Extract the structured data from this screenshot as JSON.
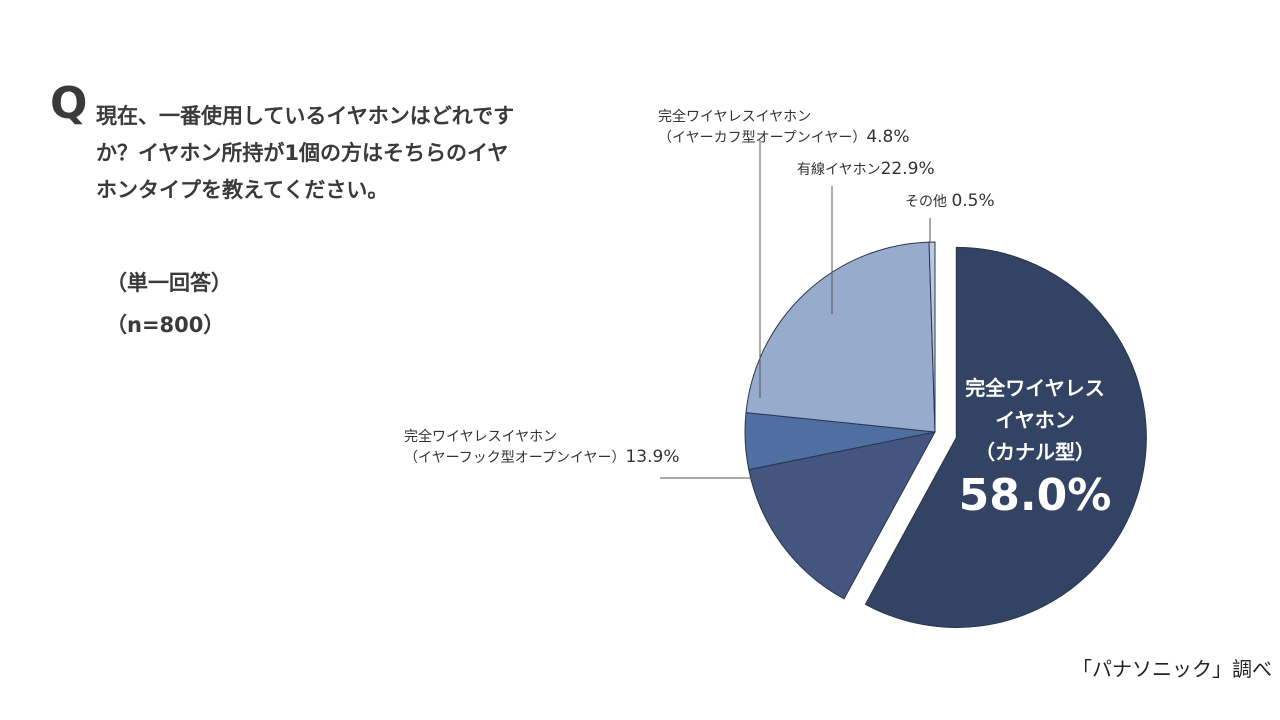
{
  "question": {
    "mark": "Q",
    "text": "現在、一番使用しているイヤホンはどれですか？イヤホン所持が1個の方はそちらのイヤホンタイプを教えてください。",
    "answer_type": "（単一回答）",
    "sample_size": "（n=800）"
  },
  "chart_data": {
    "type": "pie",
    "slices": [
      {
        "label": "完全ワイヤレスイヤホン（カナル型）",
        "value": 58.0,
        "display": "58.0%",
        "color": "#324363",
        "exploded": true
      },
      {
        "label": "完全ワイヤレスイヤホン（イヤーフック型オープンイヤー）",
        "value": 13.9,
        "display": "13.9%",
        "color": "#44567f"
      },
      {
        "label": "完全ワイヤレスイヤホン（イヤーカフ型オープンイヤー）",
        "value": 4.8,
        "display": "4.8%",
        "color": "#4f6fa3"
      },
      {
        "label": "有線イヤホン",
        "value": 22.9,
        "display": "22.9%",
        "color": "#97abcc"
      },
      {
        "label": "その他",
        "value": 0.5,
        "display": "0.5%",
        "color": "#bccae0"
      }
    ]
  },
  "labels": {
    "main_line1": "完全ワイヤレス",
    "main_line2": "イヤホン",
    "main_line3": "（カナル型）",
    "main_pct": "58.0%",
    "earcuff_line1": "完全ワイヤレスイヤホン",
    "earcuff_line2": "（イヤーカフ型オープンイヤー）",
    "earcuff_pct": "4.8%",
    "wired_name": "有線イヤホン",
    "wired_pct": "22.9%",
    "other_name": "その他",
    "other_pct": "0.5%",
    "hook_line1": "完全ワイヤレスイヤホン",
    "hook_line2": "（イヤーフック型オープンイヤー）",
    "hook_pct": "13.9%"
  },
  "source": "「パナソニック」調べ"
}
